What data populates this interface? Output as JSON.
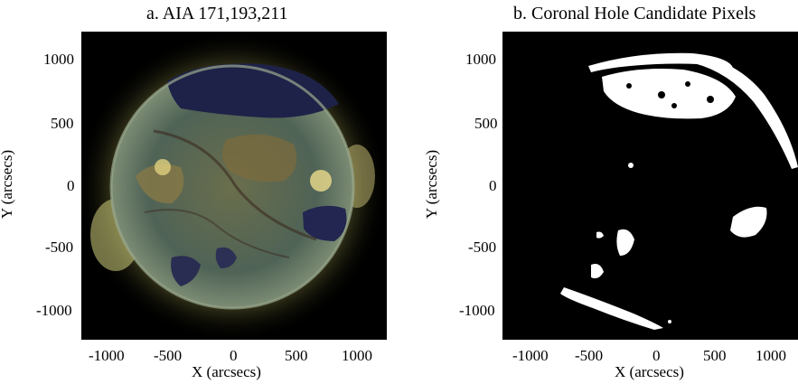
{
  "panels": [
    {
      "title": "a. AIA 171,193,211",
      "xlabel": "X (arcsecs)",
      "ylabel": "Y (arcsecs)",
      "xticks": [
        "-1000",
        "-500",
        "0",
        "500",
        "1000"
      ],
      "yticks": [
        "1000",
        "500",
        "0",
        "-500",
        "-1000"
      ],
      "image": "composite-euv-sun"
    },
    {
      "title": "b. Coronal Hole Candidate Pixels",
      "xlabel": "X (arcsecs)",
      "ylabel": "Y (arcsecs)",
      "xticks": [
        "-1000",
        "-500",
        "0",
        "500",
        "1000"
      ],
      "yticks": [
        "1000",
        "500",
        "0",
        "-500",
        "-1000"
      ],
      "image": "binary-coronal-hole-mask"
    }
  ],
  "colors": {
    "background": "#000000",
    "disk": "#5b6a55",
    "limb_glow": "#c8c27a",
    "coronal_hole": "#1e2248",
    "mask_pixel": "#ffffff"
  }
}
